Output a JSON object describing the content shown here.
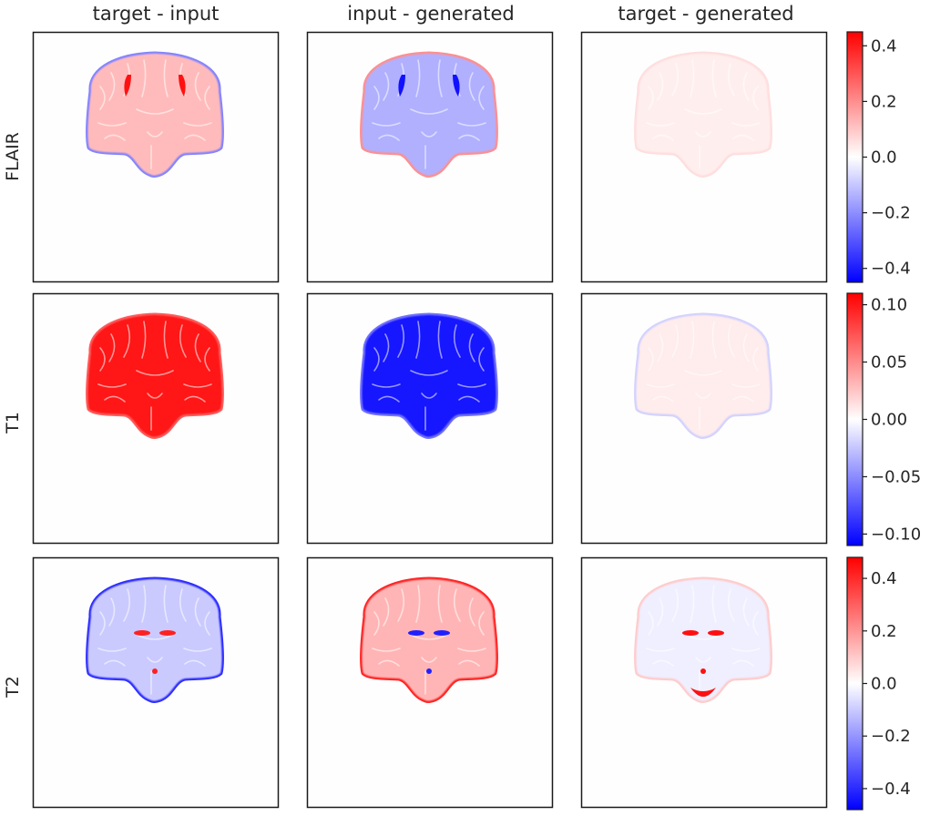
{
  "chart_data": {
    "type": "heatmap",
    "colormap": "bwr",
    "column_titles": [
      "target - input",
      "input - generated",
      "target - generated"
    ],
    "row_labels": [
      "FLAIR",
      "T1",
      "T2"
    ],
    "rows": [
      {
        "label": "FLAIR",
        "colorbar": {
          "vmin": -0.45,
          "vmax": 0.45,
          "ticks": [
            0.4,
            0.2,
            0.0,
            -0.2,
            -0.4
          ],
          "tick_labels": [
            "0.4",
            "0.2",
            "0.0",
            "−0.2",
            "−0.4"
          ]
        },
        "panels": [
          {
            "column": "target - input",
            "mean_value": 0.12,
            "edge_value": -0.22,
            "accent_value": 0.42
          },
          {
            "column": "input - generated",
            "mean_value": -0.14,
            "edge_value": 0.2,
            "accent_value": -0.42
          },
          {
            "column": "target - generated",
            "mean_value": 0.03,
            "edge_value": 0.06,
            "accent_value": 0.0
          }
        ]
      },
      {
        "label": "T1",
        "colorbar": {
          "vmin": -0.11,
          "vmax": 0.11,
          "ticks": [
            0.1,
            0.05,
            0.0,
            -0.05,
            -0.1
          ],
          "tick_labels": [
            "0.10",
            "0.05",
            "0.00",
            "−0.05",
            "−0.10"
          ]
        },
        "panels": [
          {
            "column": "target - input",
            "mean_value": 0.1,
            "edge_value": 0.07,
            "accent_value": 0.0
          },
          {
            "column": "input - generated",
            "mean_value": -0.1,
            "edge_value": -0.06,
            "accent_value": 0.0
          },
          {
            "column": "target - generated",
            "mean_value": 0.008,
            "edge_value": -0.02,
            "accent_value": 0.0
          }
        ]
      },
      {
        "label": "T2",
        "colorbar": {
          "vmin": -0.48,
          "vmax": 0.48,
          "ticks": [
            0.4,
            0.2,
            0.0,
            -0.2,
            -0.4
          ],
          "tick_labels": [
            "0.4",
            "0.2",
            "0.0",
            "−0.2",
            "−0.4"
          ]
        },
        "panels": [
          {
            "column": "target - input",
            "mean_value": -0.1,
            "edge_value": -0.4,
            "accent_value": 0.42
          },
          {
            "column": "input - generated",
            "mean_value": 0.14,
            "edge_value": 0.42,
            "accent_value": -0.42
          },
          {
            "column": "target - generated",
            "mean_value": -0.03,
            "edge_value": 0.1,
            "accent_value": 0.45
          }
        ]
      }
    ]
  }
}
